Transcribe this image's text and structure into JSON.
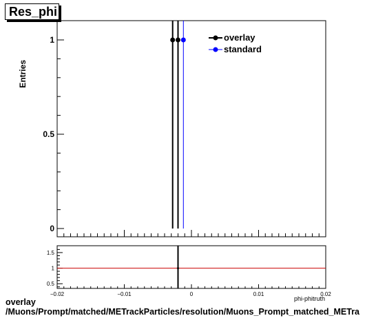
{
  "chart_data": {
    "type": "histogram",
    "title": "Res_phi",
    "ylabel": "Entries",
    "xlabel": "phi-phitruth",
    "xlim": [
      -0.02,
      0.02
    ],
    "ylim": [
      0,
      1.1
    ],
    "main_yticks": [
      0,
      0.5,
      1
    ],
    "main_ytick_labels": [
      "0",
      "0.5",
      "1"
    ],
    "ratio_ylim": [
      0.35,
      1.72
    ],
    "ratio_yticks": [
      0.5,
      1,
      1.5
    ],
    "ratio_ytick_labels": [
      "0.5",
      "1",
      "1.5"
    ],
    "xticks": [
      -0.02,
      -0.01,
      0,
      0.01,
      0.02
    ],
    "xtick_labels": [
      "−0.02",
      "−0.01",
      "0",
      "0.01",
      "0.02"
    ],
    "series": [
      {
        "name": "overlay",
        "color": "#000000",
        "x": [
          -0.0028,
          -0.002
        ],
        "y": [
          1,
          1
        ]
      },
      {
        "name": "standard",
        "color": "#0000ff",
        "x": [
          -0.0012
        ],
        "y": [
          1
        ]
      }
    ],
    "ratio": {
      "x": [
        -0.002
      ],
      "y": [
        1
      ],
      "reference": 1,
      "reference_color": "#cc0000"
    },
    "legend_position": "top-right"
  },
  "footer": {
    "line1": "overlay",
    "line2": "/Muons/Prompt/matched/METrackParticles/resolution/Muons_Prompt_matched_METra"
  }
}
